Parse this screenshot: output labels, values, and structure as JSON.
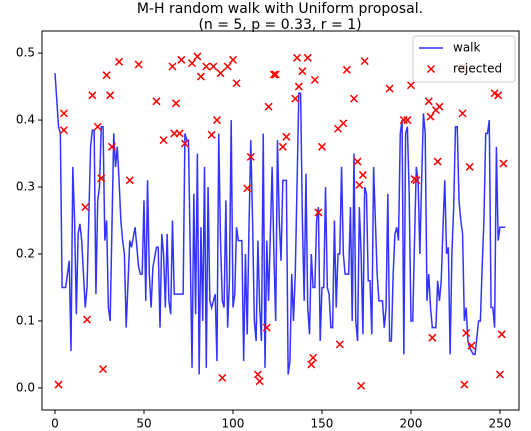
{
  "chart_data": {
    "type": "line",
    "title": "M-H random walk with Uniform proposal.",
    "subtitle": "(n = 5, p = 0.33, r = 1)",
    "xlim": [
      -7.3,
      260.7
    ],
    "ylim": [
      -0.033,
      0.533
    ],
    "xticks": [
      0,
      50,
      100,
      150,
      200,
      250
    ],
    "yticks": [
      {
        "value": 0,
        "label": "0.0"
      },
      0.1,
      0.2,
      0.3,
      0.4,
      0.5
    ],
    "legend": "upper right",
    "series": [
      {
        "name": "walk",
        "type": "line",
        "color": "rgba(0,0,255,0.8)",
        "x": [
          0,
          2,
          3,
          4,
          6,
          8,
          9,
          10,
          11,
          12,
          13,
          14,
          15,
          17,
          18,
          20,
          21,
          22,
          23,
          24,
          25,
          26,
          27,
          28,
          29,
          30,
          31,
          32,
          33,
          34,
          35,
          36,
          37,
          38,
          39,
          40,
          42,
          43,
          45,
          46,
          47,
          48,
          49,
          50,
          51,
          52,
          53,
          54,
          55,
          57,
          58,
          59,
          60,
          61,
          62,
          63,
          64,
          65,
          66,
          67,
          70,
          72,
          73,
          74,
          75,
          76,
          77,
          78,
          79,
          80,
          81,
          82,
          83,
          84,
          85,
          86,
          87,
          88,
          90,
          91,
          92,
          93,
          94,
          95,
          96,
          97,
          98,
          99,
          100,
          101,
          102,
          103,
          105,
          106,
          107,
          108,
          109,
          110,
          111,
          112,
          113,
          114,
          115,
          116,
          117,
          118,
          119,
          120,
          122,
          123,
          124,
          125,
          126,
          127,
          128,
          130,
          131,
          132,
          133,
          134,
          135,
          137,
          138,
          139,
          140,
          141,
          142,
          143,
          144,
          145,
          146,
          147,
          148,
          149,
          150,
          151,
          152,
          153,
          154,
          155,
          156,
          157,
          158,
          159,
          160,
          161,
          162,
          163,
          165,
          166,
          167,
          168,
          169,
          170,
          171,
          172,
          173,
          174,
          175,
          176,
          177,
          178,
          179,
          180,
          181,
          182,
          184,
          185,
          186,
          187,
          188,
          189,
          190,
          191,
          192,
          193,
          194,
          195,
          196,
          197,
          198,
          199,
          200,
          201,
          202,
          203,
          204,
          205,
          206,
          207,
          208,
          209,
          210,
          211,
          212,
          214,
          215,
          216,
          217,
          218,
          219,
          220,
          221,
          222,
          223,
          224,
          225,
          226,
          227,
          228,
          229,
          230,
          231,
          232,
          233,
          235,
          236,
          238,
          239,
          240,
          241,
          242,
          243,
          244,
          245,
          246,
          247,
          248,
          249,
          250,
          253
        ],
        "values": [
          0.47,
          0.39,
          0.38,
          0.15,
          0.15,
          0.19,
          0.055,
          0.33,
          0.25,
          0.11,
          0.23,
          0.245,
          0.22,
          0.12,
          0.15,
          0.36,
          0.385,
          0.385,
          0.14,
          0.28,
          0.3,
          0.39,
          0.39,
          0.22,
          0.25,
          0.12,
          0.1,
          0.24,
          0.38,
          0.33,
          0.36,
          0.31,
          0.25,
          0.22,
          0.2,
          0.09,
          0.22,
          0.21,
          0.24,
          0.21,
          0.18,
          0.17,
          0.17,
          0.28,
          0.13,
          0.31,
          0.17,
          0.12,
          0.18,
          0.21,
          0.21,
          0.09,
          0.23,
          0.2,
          0.12,
          0.23,
          0.13,
          0.11,
          0.25,
          0.14,
          0.14,
          0.14,
          0.38,
          0.37,
          0.37,
          0.2,
          0.03,
          0.29,
          0.11,
          0.35,
          0.02,
          0.24,
          0.1,
          0.33,
          0.03,
          0.3,
          0.13,
          0.12,
          0.14,
          0.04,
          0.38,
          0.22,
          0.13,
          0.12,
          0.28,
          0.09,
          0.16,
          0.4,
          0.12,
          0.14,
          0.24,
          0.22,
          0.22,
          0.04,
          0.2,
          0.08,
          0.24,
          0.37,
          0.25,
          0.1,
          0.07,
          0.22,
          0.12,
          0.07,
          0.38,
          0.03,
          0.22,
          0.13,
          0.33,
          0.2,
          0.1,
          0.37,
          0.25,
          0.19,
          0.31,
          0.31,
          0.02,
          0.04,
          0.17,
          0.1,
          0.17,
          0.44,
          0.44,
          0.25,
          0.13,
          0.32,
          0.12,
          0.08,
          0.2,
          0.15,
          0.15,
          0.25,
          0.27,
          0.07,
          0.15,
          0.15,
          0.3,
          0.15,
          0.14,
          0.09,
          0.09,
          0.25,
          0.12,
          0.2,
          0.2,
          0.33,
          0.2,
          0.17,
          0.17,
          0.27,
          0.1,
          0.35,
          0.1,
          0.07,
          0.27,
          0.2,
          0.08,
          0.3,
          0.29,
          0.16,
          0.16,
          0.08,
          0.33,
          0.25,
          0.17,
          0.13,
          0.13,
          0.09,
          0.12,
          0.29,
          0.07,
          0.07,
          0.17,
          0.23,
          0.24,
          0.22,
          0.38,
          0.4,
          0.05,
          0.38,
          0.39,
          0.29,
          0.1,
          0.1,
          0.22,
          0.33,
          0.31,
          0.2,
          0.31,
          0.41,
          0.38,
          0.13,
          0.17,
          0.12,
          0.09,
          0.09,
          0.16,
          0.13,
          0.16,
          0.24,
          0.31,
          0.2,
          0.21,
          0.05,
          0.2,
          0.27,
          0.39,
          0.39,
          0.28,
          0.25,
          0.23,
          0.1,
          0.12,
          0.07,
          0.06,
          0.05,
          0.05,
          0.1,
          0.1,
          0.18,
          0.25,
          0.38,
          0.38,
          0.4,
          0.12,
          0.12,
          0.09,
          0.36,
          0.22,
          0.24,
          0.24
        ]
      },
      {
        "name": "rejected",
        "type": "scatter",
        "color": "#ff0000",
        "x": [
          2,
          5,
          5,
          17,
          18,
          21,
          24,
          26,
          27,
          29,
          31,
          32,
          36,
          42,
          47,
          57,
          61,
          66,
          67,
          68,
          70,
          71,
          73,
          77,
          80,
          82,
          85,
          88,
          89,
          91,
          93,
          94,
          97,
          100,
          102,
          108,
          110,
          114,
          115,
          119,
          120,
          123,
          124,
          128,
          130,
          135,
          136,
          137,
          139,
          142,
          144,
          145,
          146,
          148,
          150,
          159,
          160,
          162,
          164,
          168,
          170,
          171,
          172,
          173,
          174,
          188,
          196,
          198,
          200,
          202,
          203,
          210,
          211,
          212,
          214,
          215,
          216,
          229,
          229,
          230,
          231,
          233,
          234,
          247,
          249,
          250,
          251,
          252
        ],
        "values": [
          0.005,
          0.41,
          0.385,
          0.27,
          0.102,
          0.437,
          0.39,
          0.313,
          0.028,
          0.467,
          0.437,
          0.36,
          0.487,
          0.31,
          0.483,
          0.428,
          0.37,
          0.48,
          0.38,
          0.425,
          0.38,
          0.49,
          0.365,
          0.485,
          0.495,
          0.465,
          0.48,
          0.378,
          0.48,
          0.4,
          0.47,
          0.015,
          0.48,
          0.49,
          0.455,
          0.298,
          0.345,
          0.02,
          0.01,
          0.09,
          0.42,
          0.468,
          0.468,
          0.36,
          0.375,
          0.432,
          0.493,
          0.45,
          0.473,
          0.493,
          0.035,
          0.045,
          0.46,
          0.262,
          0.36,
          0.387,
          0.065,
          0.395,
          0.475,
          0.432,
          0.338,
          0.303,
          0.003,
          0.318,
          0.488,
          0.447,
          0.4,
          0.4,
          0.452,
          0.312,
          0.31,
          0.428,
          0.405,
          0.075,
          0.415,
          0.338,
          0.42,
          0.478,
          0.41,
          0.005,
          0.082,
          0.33,
          0.063,
          0.44,
          0.437,
          0.02,
          0.08,
          0.335
        ]
      }
    ]
  }
}
